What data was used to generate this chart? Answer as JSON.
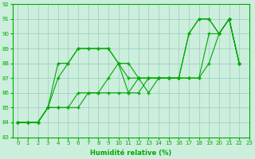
{
  "xlabel": "Humidité relative (%)",
  "background_color": "#cceedd",
  "grid_color": "#99ccbb",
  "line_color": "#00aa00",
  "xlim": [
    -0.5,
    23
  ],
  "ylim": [
    83,
    92
  ],
  "yticks": [
    83,
    84,
    85,
    86,
    87,
    88,
    89,
    90,
    91,
    92
  ],
  "xticks": [
    0,
    1,
    2,
    3,
    4,
    5,
    6,
    7,
    8,
    9,
    10,
    11,
    12,
    13,
    14,
    15,
    16,
    17,
    18,
    19,
    20,
    21,
    22,
    23
  ],
  "series": [
    {
      "x": [
        0,
        1,
        2,
        3,
        4,
        5,
        6,
        7,
        8,
        9,
        10,
        11,
        12,
        13,
        14,
        15,
        16,
        17,
        18,
        19,
        20,
        21,
        22
      ],
      "y": [
        84,
        84,
        84,
        85,
        88,
        88,
        89,
        89,
        89,
        89,
        88,
        88,
        87,
        87,
        87,
        87,
        87,
        90,
        91,
        91,
        90,
        91,
        88
      ]
    },
    {
      "x": [
        0,
        1,
        2,
        3,
        4,
        5,
        6,
        7,
        8,
        9,
        10,
        11,
        12,
        13,
        14,
        15,
        16,
        17,
        18,
        19,
        20,
        21,
        22
      ],
      "y": [
        84,
        84,
        84,
        85,
        87,
        88,
        89,
        89,
        89,
        89,
        88,
        87,
        87,
        87,
        87,
        87,
        87,
        90,
        91,
        91,
        90,
        91,
        88
      ]
    },
    {
      "x": [
        0,
        1,
        2,
        3,
        4,
        5,
        6,
        7,
        8,
        9,
        10,
        11,
        12,
        13,
        14,
        15,
        16,
        17,
        18,
        19,
        20,
        21,
        22
      ],
      "y": [
        84,
        84,
        84,
        85,
        85,
        85,
        86,
        86,
        86,
        87,
        88,
        86,
        87,
        86,
        87,
        87,
        87,
        87,
        87,
        90,
        90,
        91,
        88
      ]
    },
    {
      "x": [
        0,
        1,
        2,
        3,
        4,
        5,
        6,
        7,
        8,
        9,
        10,
        11,
        12,
        13,
        14,
        15,
        16,
        17,
        18,
        19,
        20,
        21,
        22
      ],
      "y": [
        84,
        84,
        84,
        85,
        85,
        85,
        85,
        86,
        86,
        86,
        86,
        86,
        86,
        87,
        87,
        87,
        87,
        87,
        87,
        88,
        90,
        91,
        88
      ]
    }
  ]
}
